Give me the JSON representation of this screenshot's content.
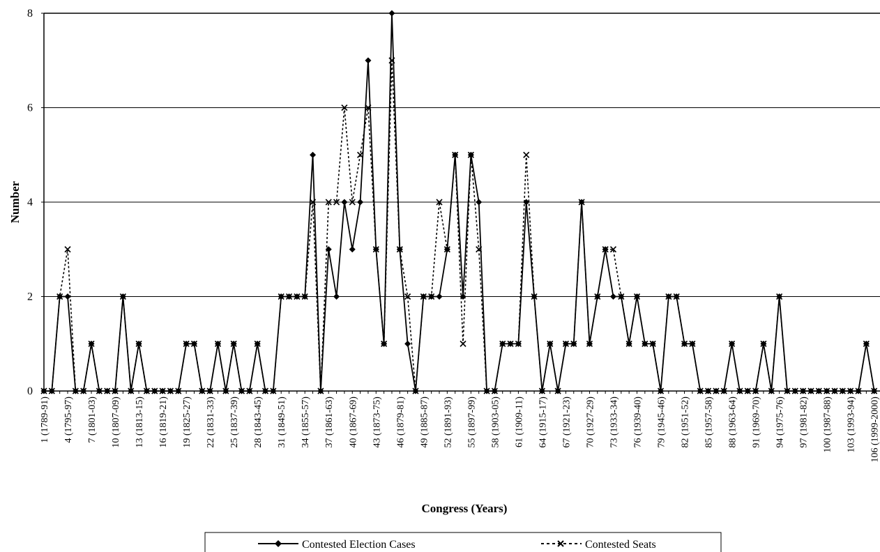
{
  "chart_data": {
    "type": "line",
    "xlabel": "Congress (Years)",
    "ylabel": "Number",
    "ylim": [
      0,
      8
    ],
    "yticks": [
      0,
      2,
      4,
      6,
      8
    ],
    "grid": true,
    "legend_position": "bottom",
    "x": [
      1,
      2,
      3,
      4,
      5,
      6,
      7,
      8,
      9,
      10,
      11,
      12,
      13,
      14,
      15,
      16,
      17,
      18,
      19,
      20,
      21,
      22,
      23,
      24,
      25,
      26,
      27,
      28,
      29,
      30,
      31,
      32,
      33,
      34,
      35,
      36,
      37,
      38,
      39,
      40,
      41,
      42,
      43,
      44,
      45,
      46,
      47,
      48,
      49,
      50,
      51,
      52,
      53,
      54,
      55,
      56,
      57,
      58,
      59,
      60,
      61,
      62,
      63,
      64,
      65,
      66,
      67,
      68,
      69,
      70,
      71,
      72,
      73,
      74,
      75,
      76,
      77,
      78,
      79,
      80,
      81,
      82,
      83,
      84,
      85,
      86,
      87,
      88,
      89,
      90,
      91,
      92,
      93,
      94,
      95,
      96,
      97,
      98,
      99,
      100,
      101,
      102,
      103,
      104,
      105,
      106
    ],
    "tick_labels": [
      {
        "x": 1,
        "label": "1 (1789-91)"
      },
      {
        "x": 4,
        "label": "4 (1795-97)"
      },
      {
        "x": 7,
        "label": "7 (1801-03)"
      },
      {
        "x": 10,
        "label": "10 (1807-09)"
      },
      {
        "x": 13,
        "label": "13 (1813-15)"
      },
      {
        "x": 16,
        "label": "16 (1819-21)"
      },
      {
        "x": 19,
        "label": "19 (1825-27)"
      },
      {
        "x": 22,
        "label": "22 (1831-33)"
      },
      {
        "x": 25,
        "label": "25 (1837-39)"
      },
      {
        "x": 28,
        "label": "28 (1843-45)"
      },
      {
        "x": 31,
        "label": "31 (1849-51)"
      },
      {
        "x": 34,
        "label": "34 (1855-57)"
      },
      {
        "x": 37,
        "label": "37 (1861-63)"
      },
      {
        "x": 40,
        "label": "40 (1867-69)"
      },
      {
        "x": 43,
        "label": "43 (1873-75)"
      },
      {
        "x": 46,
        "label": "46 (1879-81)"
      },
      {
        "x": 49,
        "label": "49 (1885-87)"
      },
      {
        "x": 52,
        "label": "52 (1891-93)"
      },
      {
        "x": 55,
        "label": "55 (1897-99)"
      },
      {
        "x": 58,
        "label": "58 (1903-05)"
      },
      {
        "x": 61,
        "label": "61 (1909-11)"
      },
      {
        "x": 64,
        "label": "64 (1915-17)"
      },
      {
        "x": 67,
        "label": "67 (1921-23)"
      },
      {
        "x": 70,
        "label": "70 (1927-29)"
      },
      {
        "x": 73,
        "label": "73 (1933-34)"
      },
      {
        "x": 76,
        "label": "76 (1939-40)"
      },
      {
        "x": 79,
        "label": "79 (1945-46)"
      },
      {
        "x": 82,
        "label": "82 (1951-52)"
      },
      {
        "x": 85,
        "label": "85 (1957-58)"
      },
      {
        "x": 88,
        "label": "88 (1963-64)"
      },
      {
        "x": 91,
        "label": "91 (1969-70)"
      },
      {
        "x": 94,
        "label": "94 (1975-76)"
      },
      {
        "x": 97,
        "label": "97 (1981-82)"
      },
      {
        "x": 100,
        "label": "100 (1987-88)"
      },
      {
        "x": 103,
        "label": "103 (1993-94)"
      },
      {
        "x": 106,
        "label": "106 (1999-2000)"
      }
    ],
    "series": [
      {
        "name": "Contested Election Cases",
        "style": "solid-diamond",
        "values": [
          0,
          0,
          2,
          2,
          0,
          0,
          1,
          0,
          0,
          0,
          2,
          0,
          1,
          0,
          0,
          0,
          0,
          0,
          1,
          1,
          0,
          0,
          1,
          0,
          1,
          0,
          0,
          1,
          0,
          0,
          2,
          2,
          2,
          2,
          5,
          0,
          3,
          2,
          4,
          3,
          4,
          7,
          3,
          1,
          8,
          3,
          1,
          0,
          2,
          2,
          2,
          3,
          5,
          2,
          5,
          4,
          0,
          0,
          1,
          1,
          1,
          4,
          2,
          0,
          1,
          0,
          1,
          1,
          4,
          1,
          2,
          3,
          2,
          2,
          1,
          2,
          1,
          1,
          0,
          2,
          2,
          1,
          1,
          0,
          0,
          0,
          0,
          1,
          0,
          0,
          0,
          1,
          0,
          2,
          0,
          0,
          0,
          0,
          0,
          0,
          0,
          0,
          0,
          0,
          1,
          0
        ]
      },
      {
        "name": "Contested Seats",
        "style": "dotted-x",
        "values": [
          0,
          0,
          2,
          3,
          0,
          0,
          1,
          0,
          0,
          0,
          2,
          0,
          1,
          0,
          0,
          0,
          0,
          0,
          1,
          1,
          0,
          0,
          1,
          0,
          1,
          0,
          0,
          1,
          0,
          0,
          2,
          2,
          2,
          2,
          4,
          0,
          4,
          4,
          6,
          4,
          5,
          6,
          3,
          1,
          7,
          3,
          2,
          0,
          2,
          2,
          4,
          3,
          5,
          1,
          5,
          3,
          0,
          0,
          1,
          1,
          1,
          5,
          2,
          0,
          1,
          0,
          1,
          1,
          4,
          1,
          2,
          3,
          3,
          2,
          1,
          2,
          1,
          1,
          0,
          2,
          2,
          1,
          1,
          0,
          0,
          0,
          0,
          1,
          0,
          0,
          0,
          1,
          0,
          2,
          0,
          0,
          0,
          0,
          0,
          0,
          0,
          0,
          0,
          0,
          1,
          0
        ]
      }
    ]
  }
}
